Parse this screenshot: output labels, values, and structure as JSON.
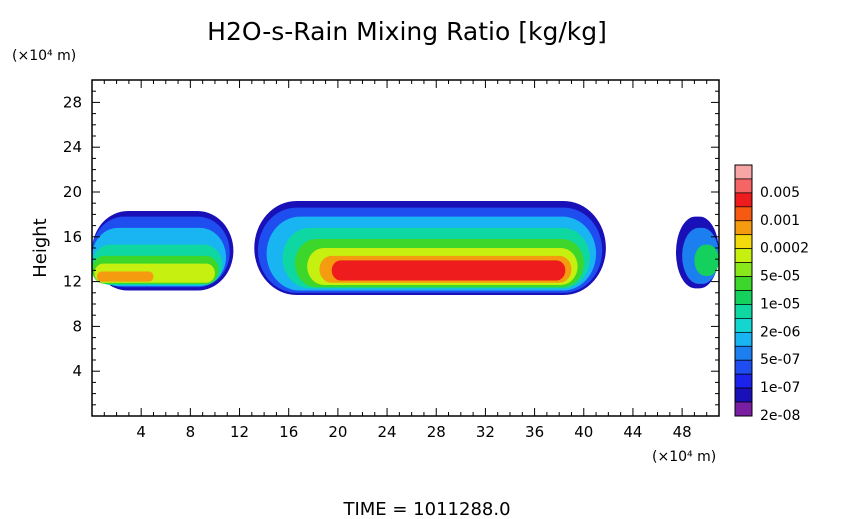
{
  "chart_data": {
    "type": "heatmap",
    "title": "H2O-s-Rain Mixing Ratio [kg/kg]",
    "ylabel": "Height",
    "y_unit": "(×10⁴ m)",
    "x_unit": "(×10⁴ m)",
    "footer": "TIME = 1011288.0",
    "xlim": [
      0,
      51
    ],
    "ylim": [
      0,
      30
    ],
    "x_ticks": [
      4,
      8,
      12,
      16,
      20,
      24,
      28,
      32,
      36,
      40,
      44,
      48
    ],
    "y_ticks": [
      4,
      8,
      12,
      16,
      20,
      24,
      28
    ],
    "colorbar": {
      "levels": [
        {
          "label": "",
          "color": "#f7a5a5"
        },
        {
          "label": "0.005",
          "color": "#f56565"
        },
        {
          "label": "",
          "color": "#ee1c1c"
        },
        {
          "label": "0.001",
          "color": "#f55a10"
        },
        {
          "label": "",
          "color": "#f59b0f"
        },
        {
          "label": "0.0002",
          "color": "#f2da0c"
        },
        {
          "label": "",
          "color": "#c6f00f"
        },
        {
          "label": "5e-05",
          "color": "#88e81a"
        },
        {
          "label": "",
          "color": "#3dd62a"
        },
        {
          "label": "1e-05",
          "color": "#14d05c"
        },
        {
          "label": "",
          "color": "#0fd7a1"
        },
        {
          "label": "2e-06",
          "color": "#14d6d0"
        },
        {
          "label": "",
          "color": "#18b5f2"
        },
        {
          "label": "5e-07",
          "color": "#1c7ff0"
        },
        {
          "label": "",
          "color": "#1e4ef0"
        },
        {
          "label": "1e-07",
          "color": "#1a22ec"
        },
        {
          "label": "",
          "color": "#1a10b8"
        },
        {
          "label": "2e-08",
          "color": "#7b1fa2"
        }
      ]
    },
    "cells": [
      {
        "x": [
          0.0,
          11.5
        ],
        "y": [
          11.2,
          18.3
        ],
        "level": 16
      },
      {
        "x": [
          0.0,
          11.2
        ],
        "y": [
          11.5,
          17.8
        ],
        "level": 14
      },
      {
        "x": [
          0.0,
          10.9
        ],
        "y": [
          11.6,
          16.8
        ],
        "level": 12
      },
      {
        "x": [
          0.0,
          10.6
        ],
        "y": [
          11.7,
          15.3
        ],
        "level": 10
      },
      {
        "x": [
          0.0,
          10.3
        ],
        "y": [
          11.8,
          14.3
        ],
        "level": 8
      },
      {
        "x": [
          0.2,
          10.0
        ],
        "y": [
          11.9,
          13.6
        ],
        "level": 6
      },
      {
        "x": [
          0.4,
          5.0
        ],
        "y": [
          12.0,
          12.9
        ],
        "level": 4
      },
      {
        "x": [
          13.2,
          41.8
        ],
        "y": [
          10.8,
          19.2
        ],
        "level": 16
      },
      {
        "x": [
          13.5,
          41.5
        ],
        "y": [
          11.0,
          18.6
        ],
        "level": 14
      },
      {
        "x": [
          14.2,
          41.0
        ],
        "y": [
          11.2,
          17.8
        ],
        "level": 12
      },
      {
        "x": [
          15.5,
          40.5
        ],
        "y": [
          11.4,
          16.8
        ],
        "level": 10
      },
      {
        "x": [
          16.5,
          40.0
        ],
        "y": [
          11.5,
          15.8
        ],
        "level": 8
      },
      {
        "x": [
          17.5,
          39.5
        ],
        "y": [
          11.7,
          15.0
        ],
        "level": 6
      },
      {
        "x": [
          18.5,
          39.0
        ],
        "y": [
          11.9,
          14.3
        ],
        "level": 4
      },
      {
        "x": [
          19.5,
          38.5
        ],
        "y": [
          12.1,
          13.9
        ],
        "level": 2
      },
      {
        "x": [
          47.5,
          51.0
        ],
        "y": [
          11.4,
          17.8
        ],
        "level": 16
      },
      {
        "x": [
          48.0,
          51.0
        ],
        "y": [
          11.8,
          16.8
        ],
        "level": 13
      },
      {
        "x": [
          49.0,
          51.0
        ],
        "y": [
          12.5,
          15.3
        ],
        "level": 9
      }
    ]
  }
}
